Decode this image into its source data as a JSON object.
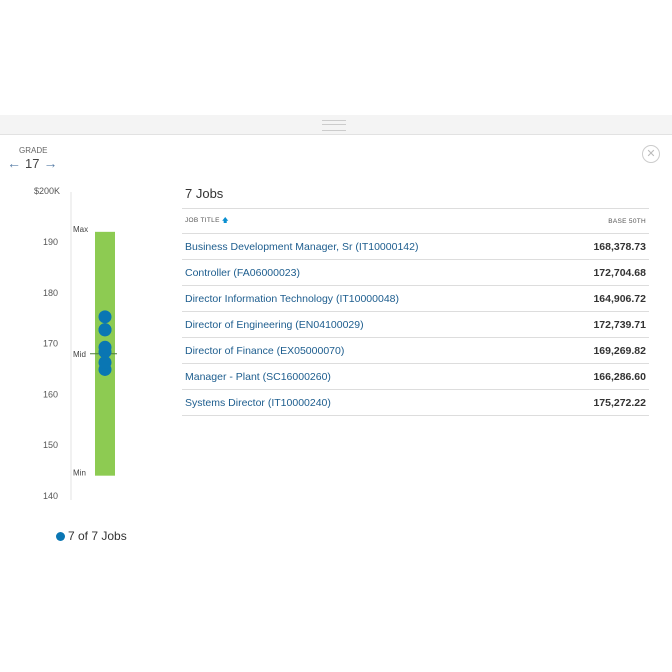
{
  "grade": {
    "label": "GRADE",
    "value": "17",
    "prev_icon": "arrow-left-icon",
    "next_icon": "arrow-right-icon"
  },
  "close_icon": "close-circle-icon",
  "chart_data": {
    "type": "scatter",
    "ylim": [
      140,
      200
    ],
    "y_ticks": [
      "$200K",
      "190",
      "180",
      "170",
      "160",
      "150",
      "140"
    ],
    "y_tick_values": [
      200,
      190,
      180,
      170,
      160,
      150,
      140
    ],
    "range": {
      "max": 192,
      "mid": 168,
      "min": 144,
      "max_label": "Max",
      "mid_label": "Mid",
      "min_label": "Min",
      "color": "#8dcb52"
    },
    "points": [
      168.38,
      172.7,
      164.91,
      172.74,
      169.27,
      166.29,
      175.27
    ],
    "point_color": "#0a76b3"
  },
  "legend": {
    "text": "7 of 7 Jobs"
  },
  "jobs": {
    "title": "7 Jobs",
    "columns": [
      "JOB TITLE",
      "BASE 50TH"
    ],
    "sort_icon": "sort-asc-icon",
    "rows": [
      {
        "title": "Business Development Manager, Sr (IT10000142)",
        "value": "168,378.73"
      },
      {
        "title": "Controller (FA06000023)",
        "value": "172,704.68"
      },
      {
        "title": "Director Information Technology (IT10000048)",
        "value": "164,906.72"
      },
      {
        "title": "Director of Engineering (EN04100029)",
        "value": "172,739.71"
      },
      {
        "title": "Director of Finance (EX05000070)",
        "value": "169,269.82"
      },
      {
        "title": "Manager - Plant (SC16000260)",
        "value": "166,286.60"
      },
      {
        "title": "Systems Director (IT10000240)",
        "value": "175,272.22"
      }
    ]
  }
}
